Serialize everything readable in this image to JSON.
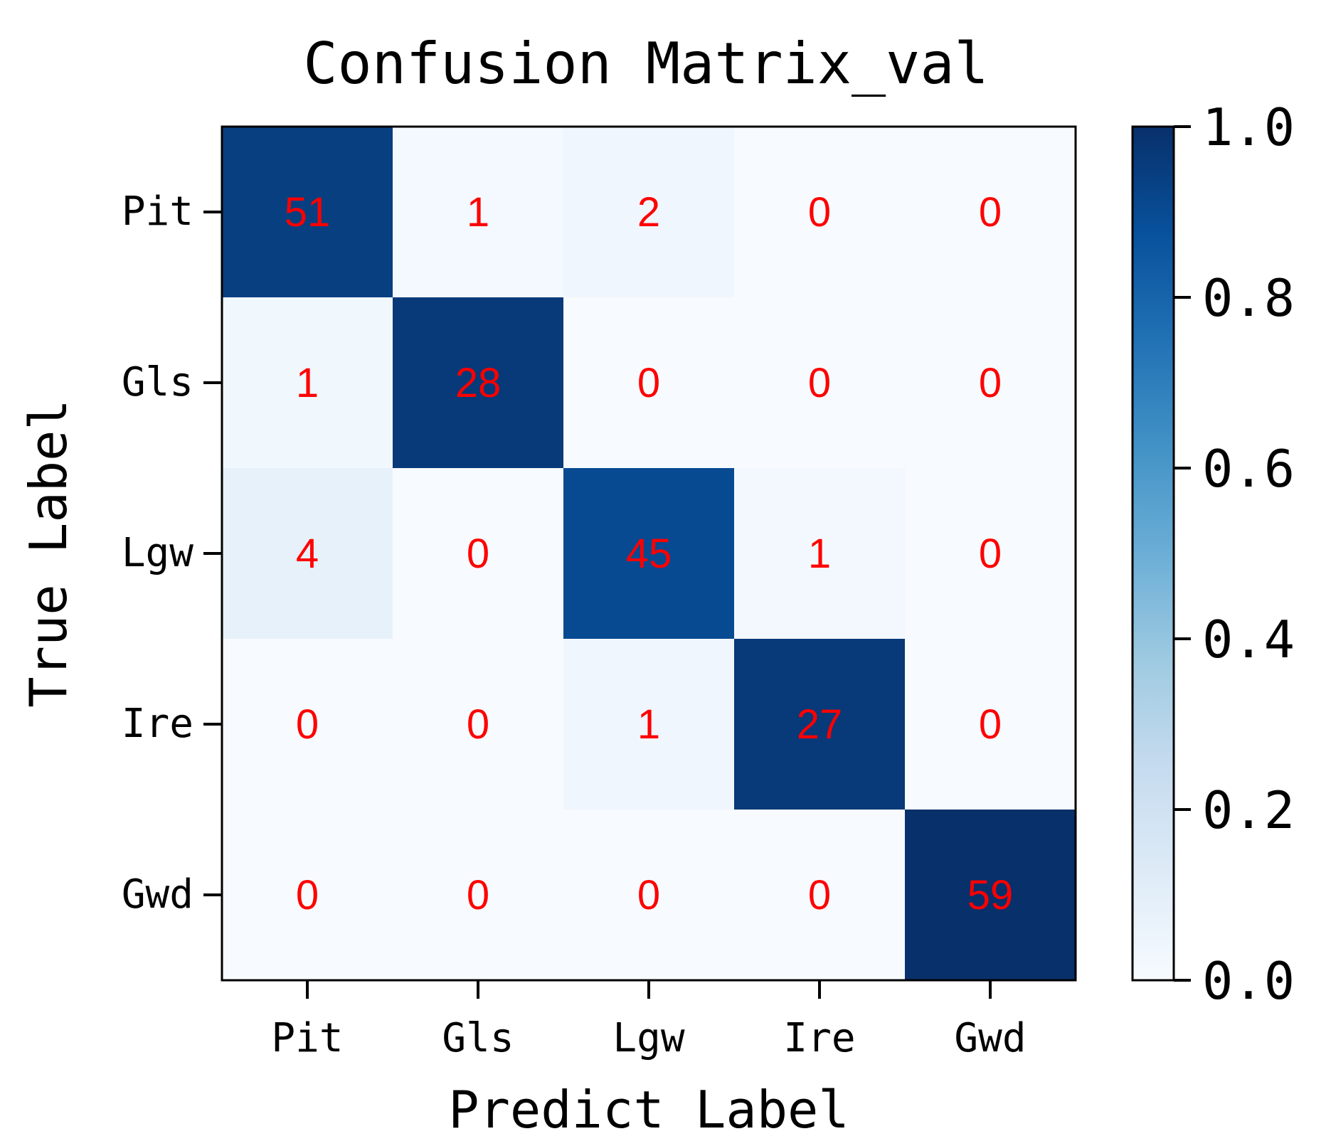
{
  "chart_data": {
    "type": "heatmap",
    "title": "Confusion Matrix_val",
    "xlabel": "Predict Label",
    "ylabel": "True Label",
    "x_categories": [
      "Pit",
      "Gls",
      "Lgw",
      "Ire",
      "Gwd"
    ],
    "y_categories": [
      "Pit",
      "Gls",
      "Lgw",
      "Ire",
      "Gwd"
    ],
    "values": [
      [
        51,
        1,
        2,
        0,
        0
      ],
      [
        1,
        28,
        0,
        0,
        0
      ],
      [
        4,
        0,
        45,
        1,
        0
      ],
      [
        0,
        0,
        1,
        27,
        0
      ],
      [
        0,
        0,
        0,
        0,
        59
      ]
    ],
    "color_normalization": "row",
    "colormap": "Blues",
    "colormap_stops": [
      "#f7fbff",
      "#deebf7",
      "#c6dbef",
      "#9ecae1",
      "#6baed6",
      "#4292c6",
      "#2171b5",
      "#08519c",
      "#08306b"
    ],
    "annotation_color": "#ff0000",
    "colorbar": {
      "range": [
        0.0,
        1.0
      ],
      "ticks": [
        "0.0",
        "0.2",
        "0.4",
        "0.6",
        "0.8",
        "1.0"
      ]
    },
    "grid": false
  }
}
